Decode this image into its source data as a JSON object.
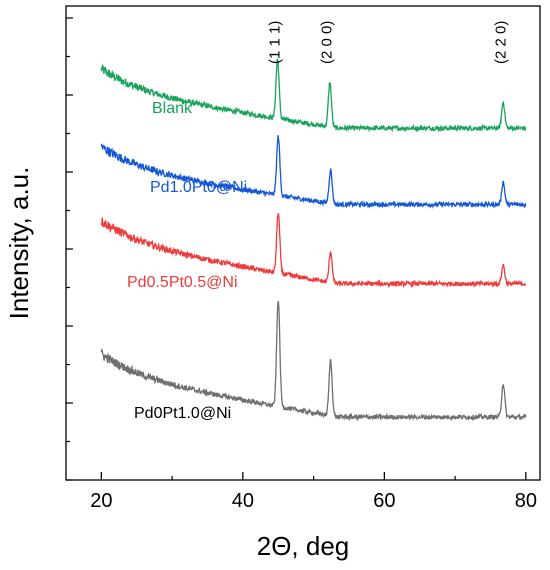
{
  "chart_data": {
    "type": "line",
    "title": "",
    "xlabel": "2Θ, deg",
    "ylabel": "Intensity, a.u.",
    "xlim": [
      15,
      82
    ],
    "x_ticks": [
      "20",
      "40",
      "60",
      "80"
    ],
    "y_tick_labels_shown": false,
    "grid": false,
    "legend": "inline labels",
    "peak_annotations": [
      {
        "label": "(1 1 1)",
        "x": 44.5
      },
      {
        "label": "(2 0 0)",
        "x": 51.8
      },
      {
        "label": "(2 2 0)",
        "x": 76.4
      }
    ],
    "series": [
      {
        "name": "Blank",
        "color": "#1aa35a",
        "x_range": [
          20,
          80
        ],
        "baseline_start": 3.55,
        "baseline_end": 3.05,
        "peaks": [
          {
            "x": 44.9,
            "height": 0.8
          },
          {
            "x": 52.3,
            "height": 0.6
          },
          {
            "x": 76.8,
            "height": 0.35
          }
        ]
      },
      {
        "name": "Pd1.0Pt0@Ni",
        "color": "#1457d6",
        "x_range": [
          20,
          80
        ],
        "baseline_start": 2.5,
        "baseline_end": 2.02,
        "peaks": [
          {
            "x": 45.0,
            "height": 0.8
          },
          {
            "x": 52.4,
            "height": 0.45
          },
          {
            "x": 76.8,
            "height": 0.3
          }
        ]
      },
      {
        "name": "Pd0.5Pt0.5@Ni",
        "color": "#ee3b3b",
        "x_range": [
          20,
          80
        ],
        "baseline_start": 1.5,
        "baseline_end": 0.95,
        "peaks": [
          {
            "x": 45.0,
            "height": 0.82
          },
          {
            "x": 52.4,
            "height": 0.42
          },
          {
            "x": 76.8,
            "height": 0.25
          }
        ]
      },
      {
        "name": "Pd0Pt1.0@Ni",
        "color": "#6f6f6f",
        "x_range": [
          20,
          80
        ],
        "baseline_start": -0.3,
        "baseline_end": -0.85,
        "peaks": [
          {
            "x": 45.0,
            "height": 1.45
          },
          {
            "x": 52.4,
            "height": 0.75
          },
          {
            "x": 76.8,
            "height": 0.45
          }
        ]
      }
    ]
  }
}
